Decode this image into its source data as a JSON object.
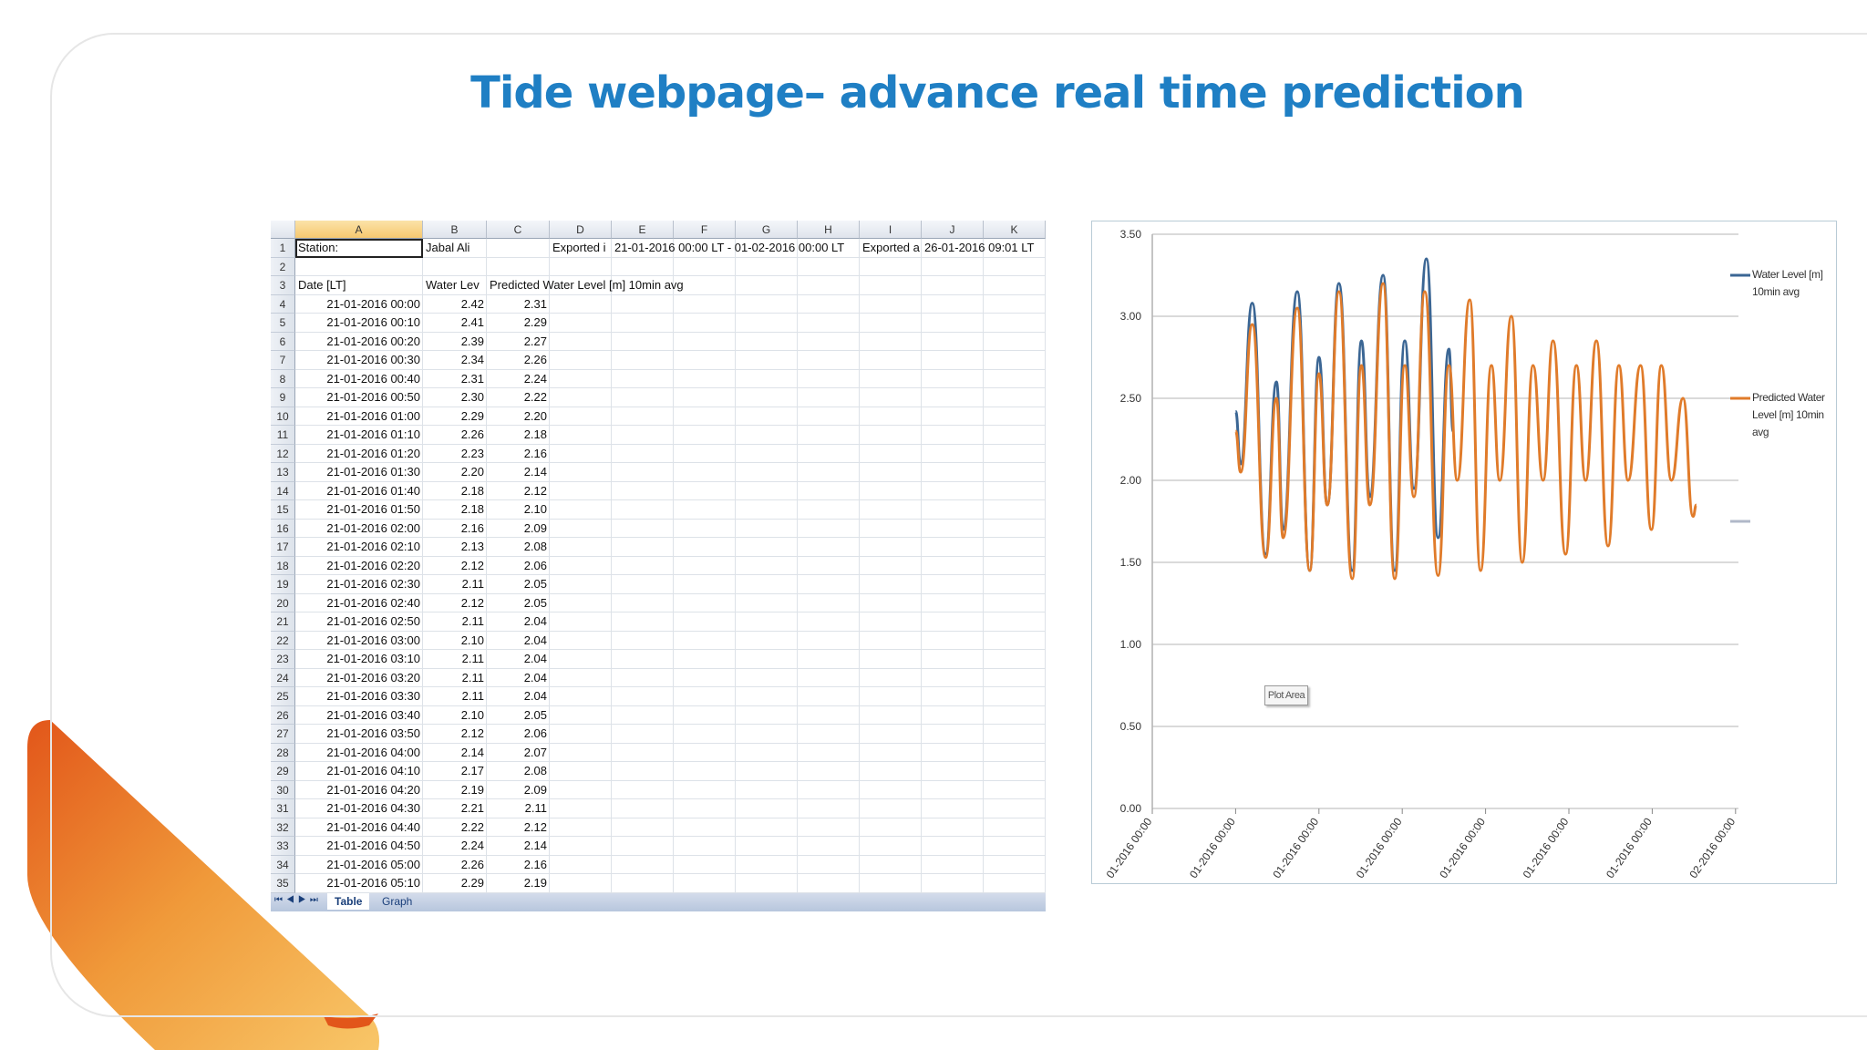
{
  "title": "Tide webpage– advance real time prediction",
  "sheet": {
    "columns": [
      "A",
      "B",
      "C",
      "D",
      "E",
      "F",
      "G",
      "H",
      "I",
      "J",
      "K"
    ],
    "rows": [
      {
        "number": 1,
        "cells": {
          "A": "Station:",
          "B": "Jabal Ali",
          "D": "Exported i",
          "E": "21-01-2016 00:00 LT - 01-02-2016 00:00 LT",
          "I": "Exported a",
          "J": "26-01-2016 09:01 LT"
        }
      },
      {
        "number": 2,
        "cells": {}
      },
      {
        "number": 3,
        "cells": {
          "A": "Date [LT]",
          "B": "Water Lev",
          "C": "Predicted Water Level [m] 10min avg"
        }
      },
      {
        "number": 4,
        "cells": {
          "A": "21-01-2016 00:00",
          "B": "2.42",
          "C": "2.31"
        }
      },
      {
        "number": 5,
        "cells": {
          "A": "21-01-2016 00:10",
          "B": "2.41",
          "C": "2.29"
        }
      },
      {
        "number": 6,
        "cells": {
          "A": "21-01-2016 00:20",
          "B": "2.39",
          "C": "2.27"
        }
      },
      {
        "number": 7,
        "cells": {
          "A": "21-01-2016 00:30",
          "B": "2.34",
          "C": "2.26"
        }
      },
      {
        "number": 8,
        "cells": {
          "A": "21-01-2016 00:40",
          "B": "2.31",
          "C": "2.24"
        }
      },
      {
        "number": 9,
        "cells": {
          "A": "21-01-2016 00:50",
          "B": "2.30",
          "C": "2.22"
        }
      },
      {
        "number": 10,
        "cells": {
          "A": "21-01-2016 01:00",
          "B": "2.29",
          "C": "2.20"
        }
      },
      {
        "number": 11,
        "cells": {
          "A": "21-01-2016 01:10",
          "B": "2.26",
          "C": "2.18"
        }
      },
      {
        "number": 12,
        "cells": {
          "A": "21-01-2016 01:20",
          "B": "2.23",
          "C": "2.16"
        }
      },
      {
        "number": 13,
        "cells": {
          "A": "21-01-2016 01:30",
          "B": "2.20",
          "C": "2.14"
        }
      },
      {
        "number": 14,
        "cells": {
          "A": "21-01-2016 01:40",
          "B": "2.18",
          "C": "2.12"
        }
      },
      {
        "number": 15,
        "cells": {
          "A": "21-01-2016 01:50",
          "B": "2.18",
          "C": "2.10"
        }
      },
      {
        "number": 16,
        "cells": {
          "A": "21-01-2016 02:00",
          "B": "2.16",
          "C": "2.09"
        }
      },
      {
        "number": 17,
        "cells": {
          "A": "21-01-2016 02:10",
          "B": "2.13",
          "C": "2.08"
        }
      },
      {
        "number": 18,
        "cells": {
          "A": "21-01-2016 02:20",
          "B": "2.12",
          "C": "2.06"
        }
      },
      {
        "number": 19,
        "cells": {
          "A": "21-01-2016 02:30",
          "B": "2.11",
          "C": "2.05"
        }
      },
      {
        "number": 20,
        "cells": {
          "A": "21-01-2016 02:40",
          "B": "2.12",
          "C": "2.05"
        }
      },
      {
        "number": 21,
        "cells": {
          "A": "21-01-2016 02:50",
          "B": "2.11",
          "C": "2.04"
        }
      },
      {
        "number": 22,
        "cells": {
          "A": "21-01-2016 03:00",
          "B": "2.10",
          "C": "2.04"
        }
      },
      {
        "number": 23,
        "cells": {
          "A": "21-01-2016 03:10",
          "B": "2.11",
          "C": "2.04"
        }
      },
      {
        "number": 24,
        "cells": {
          "A": "21-01-2016 03:20",
          "B": "2.11",
          "C": "2.04"
        }
      },
      {
        "number": 25,
        "cells": {
          "A": "21-01-2016 03:30",
          "B": "2.11",
          "C": "2.04"
        }
      },
      {
        "number": 26,
        "cells": {
          "A": "21-01-2016 03:40",
          "B": "2.10",
          "C": "2.05"
        }
      },
      {
        "number": 27,
        "cells": {
          "A": "21-01-2016 03:50",
          "B": "2.12",
          "C": "2.06"
        }
      },
      {
        "number": 28,
        "cells": {
          "A": "21-01-2016 04:00",
          "B": "2.14",
          "C": "2.07"
        }
      },
      {
        "number": 29,
        "cells": {
          "A": "21-01-2016 04:10",
          "B": "2.17",
          "C": "2.08"
        }
      },
      {
        "number": 30,
        "cells": {
          "A": "21-01-2016 04:20",
          "B": "2.19",
          "C": "2.09"
        }
      },
      {
        "number": 31,
        "cells": {
          "A": "21-01-2016 04:30",
          "B": "2.21",
          "C": "2.11"
        }
      },
      {
        "number": 32,
        "cells": {
          "A": "21-01-2016 04:40",
          "B": "2.22",
          "C": "2.12"
        }
      },
      {
        "number": 33,
        "cells": {
          "A": "21-01-2016 04:50",
          "B": "2.24",
          "C": "2.14"
        }
      },
      {
        "number": 34,
        "cells": {
          "A": "21-01-2016 05:00",
          "B": "2.26",
          "C": "2.16"
        }
      },
      {
        "number": 35,
        "cells": {
          "A": "21-01-2016 05:10",
          "B": "2.29",
          "C": "2.19"
        }
      }
    ],
    "tabs": [
      "Table",
      "Graph"
    ]
  },
  "chart_data": {
    "type": "line",
    "annotation": "Plot Area",
    "grid": true,
    "ylim": [
      0,
      3.5
    ],
    "yticks": [
      {
        "value": 0,
        "label": "0.00"
      },
      {
        "value": 0.5,
        "label": "0.50"
      },
      {
        "value": 1,
        "label": "1.00"
      },
      {
        "value": 1.5,
        "label": "1.50"
      },
      {
        "value": 2,
        "label": "2.00"
      },
      {
        "value": 2.5,
        "label": "2.50"
      },
      {
        "value": 3,
        "label": "3.00"
      },
      {
        "value": 3.5,
        "label": "3.50"
      }
    ],
    "xlim": [
      0,
      7
    ],
    "xticks": [
      {
        "value": 0,
        "label": "01-2016 00:00"
      },
      {
        "value": 1,
        "label": "01-2016 00:00"
      },
      {
        "value": 2,
        "label": "01-2016 00:00"
      },
      {
        "value": 3,
        "label": "01-2016 00:00"
      },
      {
        "value": 4,
        "label": "01-2016 00:00"
      },
      {
        "value": 5,
        "label": "01-2016 00:00"
      },
      {
        "value": 6,
        "label": "01-2016 00:00"
      },
      {
        "value": 7,
        "label": "02-2016 00:00"
      }
    ],
    "series": [
      {
        "name": "Water Level [m] 10min avg",
        "color": "#3b6694",
        "x": [
          1.0,
          1.06,
          1.2,
          1.36,
          1.49,
          1.57,
          1.74,
          1.89,
          2.0,
          2.1,
          2.24,
          2.4,
          2.51,
          2.61,
          2.77,
          2.91,
          3.03,
          3.14,
          3.29,
          3.43,
          3.56,
          3.61
        ],
        "values": [
          2.42,
          2.1,
          3.08,
          1.55,
          2.6,
          1.7,
          3.15,
          1.45,
          2.75,
          1.85,
          3.2,
          1.45,
          2.85,
          1.9,
          3.25,
          1.45,
          2.85,
          1.95,
          3.35,
          1.65,
          2.8,
          2.3
        ]
      },
      {
        "name": "Predicted Water Level [m] 10min avg",
        "color": "#e07b2a",
        "x": [
          1.0,
          1.06,
          1.2,
          1.36,
          1.49,
          1.57,
          1.74,
          1.89,
          2.0,
          2.1,
          2.24,
          2.4,
          2.51,
          2.61,
          2.77,
          2.91,
          3.03,
          3.14,
          3.27,
          3.43,
          3.56,
          3.66,
          3.81,
          3.94,
          4.07,
          4.17,
          4.31,
          4.44,
          4.57,
          4.69,
          4.81,
          4.96,
          5.09,
          5.2,
          5.33,
          5.47,
          5.6,
          5.71,
          5.86,
          5.99,
          6.11,
          6.23,
          6.37,
          6.49,
          6.53
        ],
        "values": [
          2.3,
          2.05,
          2.95,
          1.53,
          2.5,
          1.65,
          3.05,
          1.45,
          2.65,
          1.85,
          3.15,
          1.4,
          2.7,
          1.85,
          3.2,
          1.4,
          2.7,
          1.9,
          3.15,
          1.42,
          2.7,
          2.0,
          3.1,
          1.45,
          2.7,
          2.0,
          3.0,
          1.5,
          2.7,
          2.0,
          2.85,
          1.55,
          2.7,
          2.0,
          2.85,
          1.6,
          2.7,
          2.0,
          2.7,
          1.7,
          2.7,
          2.0,
          2.5,
          1.78,
          1.85
        ]
      }
    ]
  }
}
